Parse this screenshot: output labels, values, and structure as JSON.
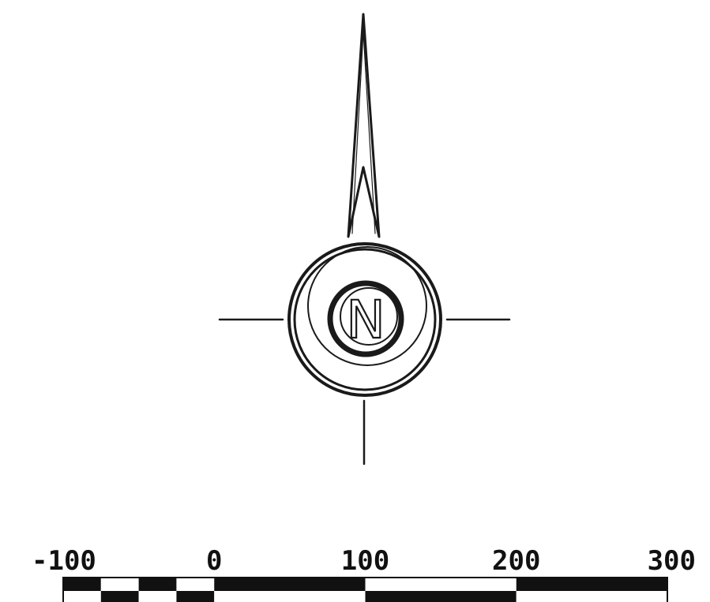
{
  "north_arrow": {
    "letter": "N",
    "icon": "compass-rose-north-arrow",
    "color": "#1a1a1a"
  },
  "scale_bar": {
    "tick_labels": [
      "-100",
      "0",
      "100",
      "200",
      "300"
    ],
    "tick_values": [
      -100,
      0,
      100,
      200,
      300
    ],
    "subdivisions_left_segment": 4,
    "fill_dark": "#111111",
    "fill_light": "#ffffff"
  }
}
